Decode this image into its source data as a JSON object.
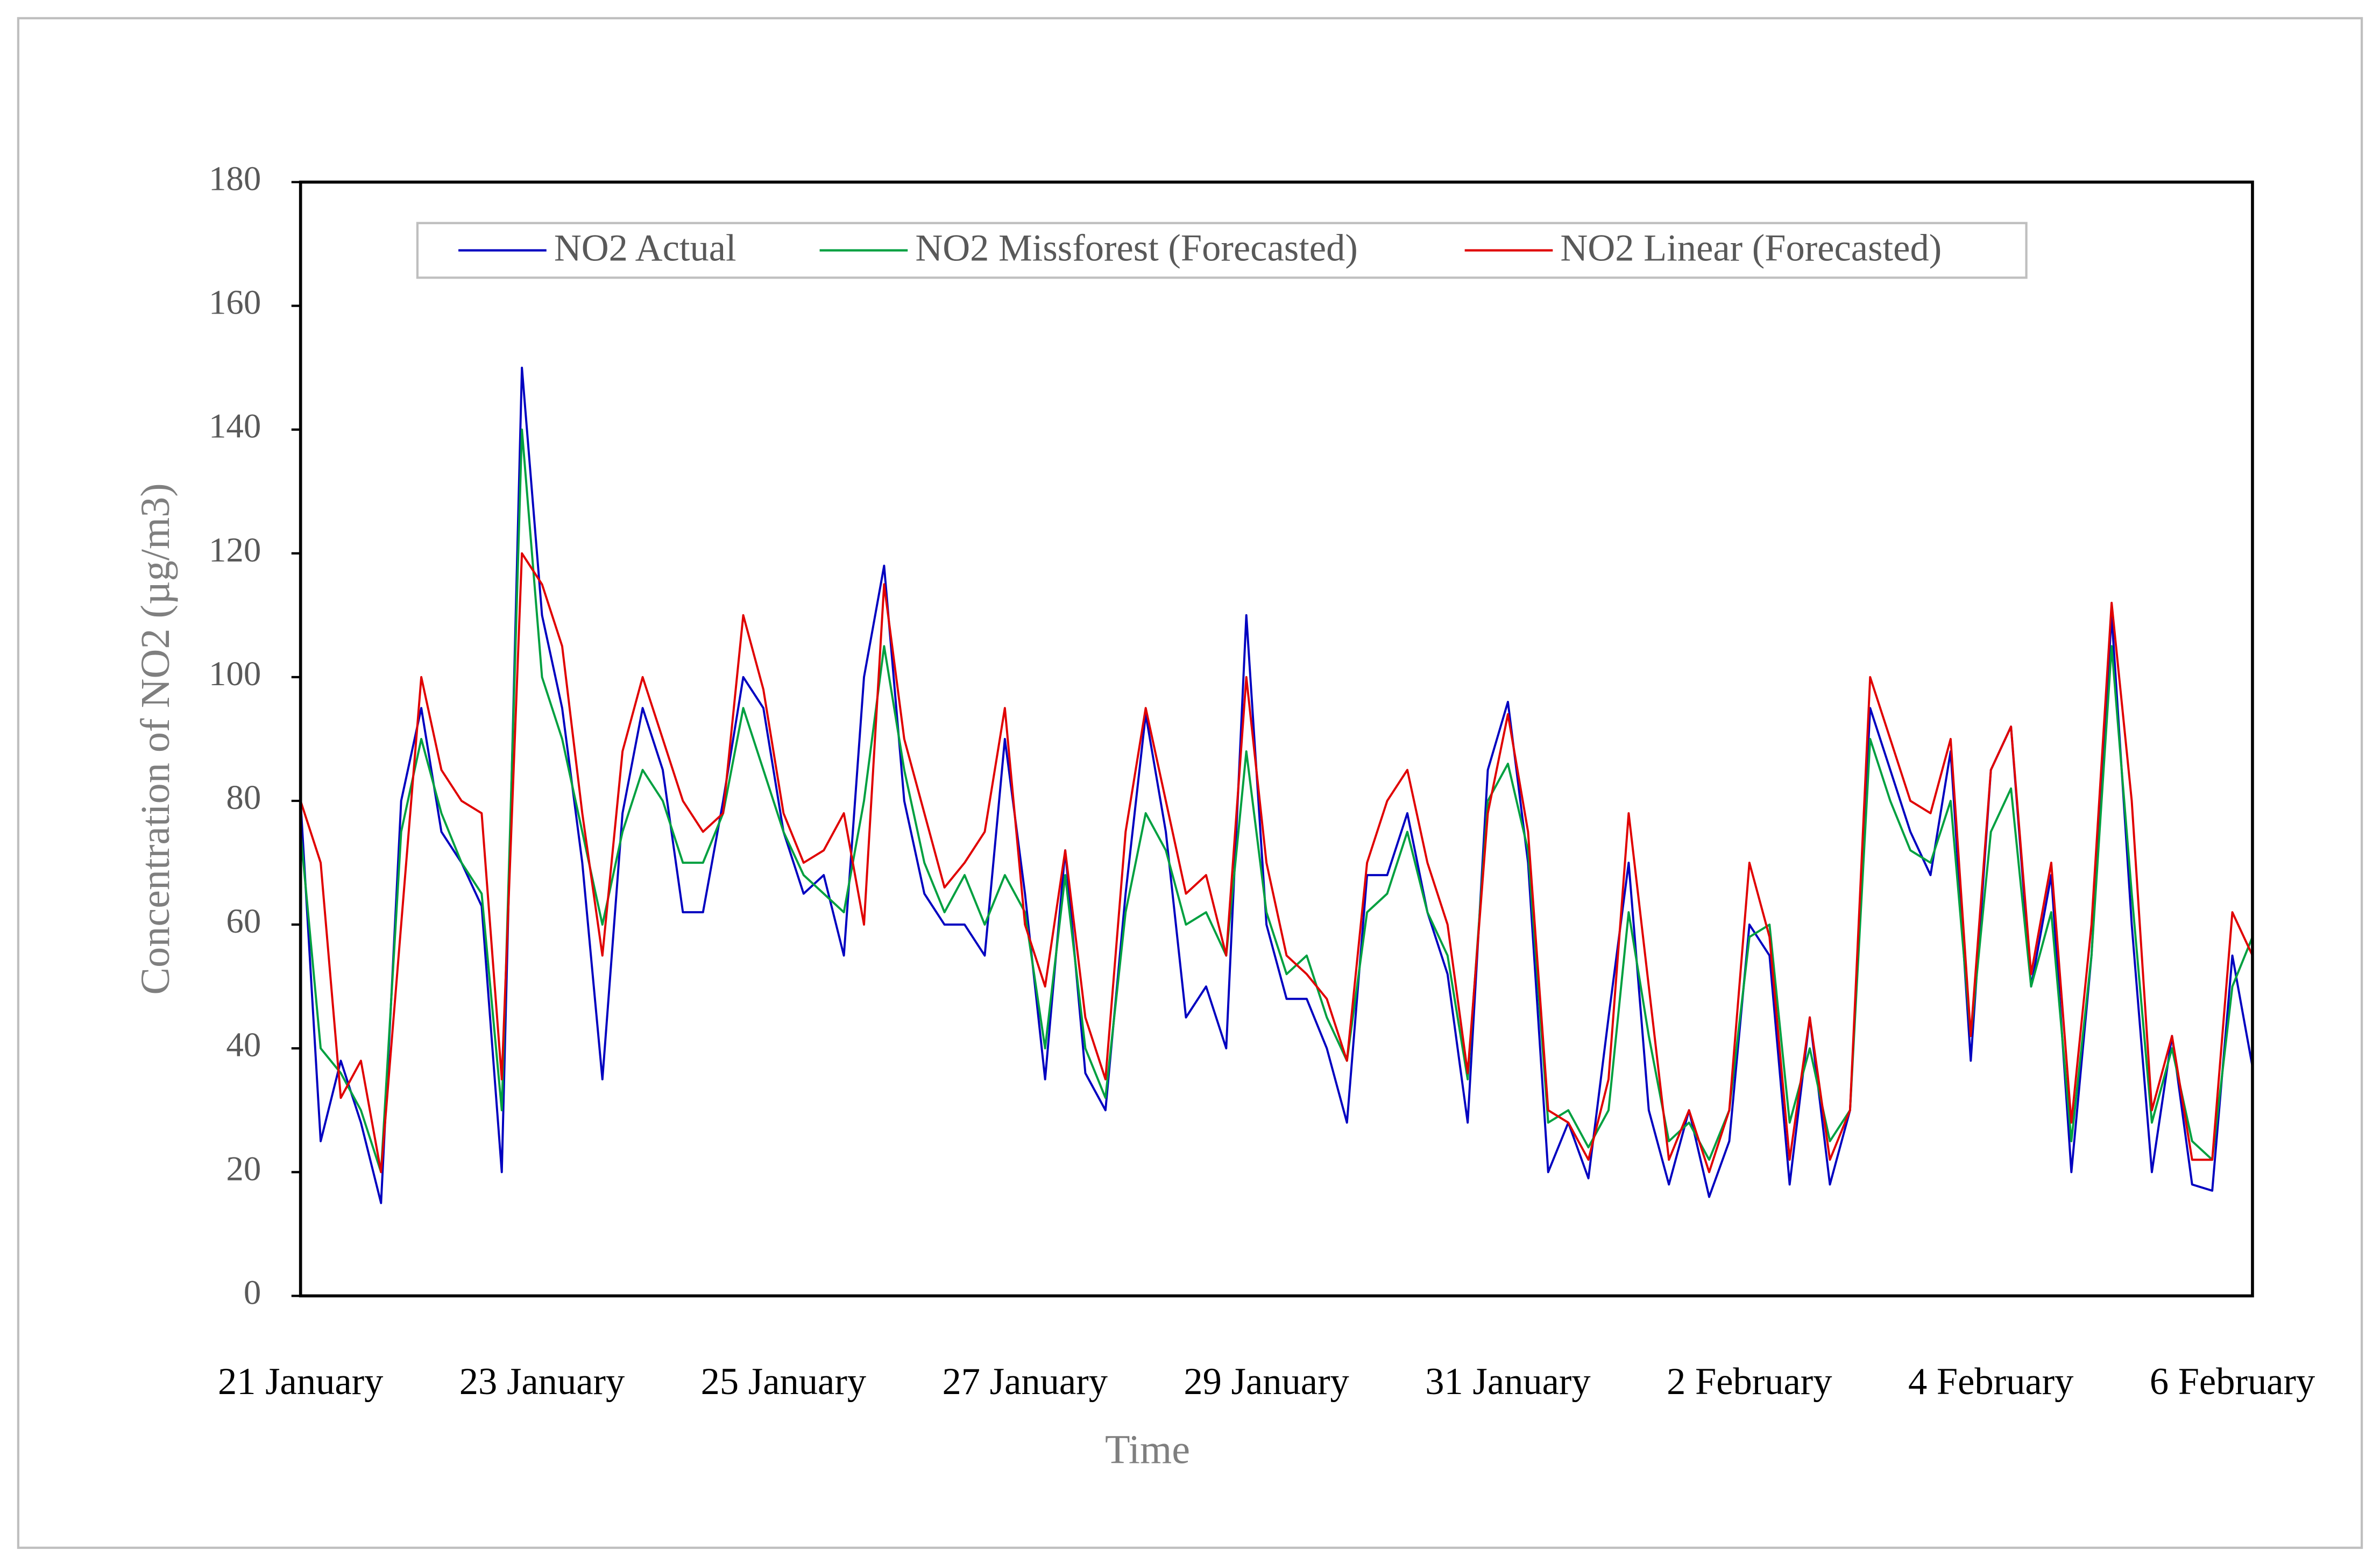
{
  "chart_data": {
    "type": "line",
    "x_label": "Time",
    "y_label": "Concentration of NO2 (µg/m3)",
    "categories": [
      "21 January",
      null,
      null,
      null,
      null,
      null,
      null,
      null,
      null,
      null,
      null,
      null,
      "23 January",
      null,
      null,
      null,
      null,
      null,
      null,
      null,
      null,
      null,
      null,
      null,
      "25 January",
      null,
      null,
      null,
      null,
      null,
      null,
      null,
      null,
      null,
      null,
      null,
      "27 January",
      null,
      null,
      null,
      null,
      null,
      null,
      null,
      null,
      null,
      null,
      null,
      "29 January",
      null,
      null,
      null,
      null,
      null,
      null,
      null,
      null,
      null,
      null,
      null,
      "31 January",
      null,
      null,
      null,
      null,
      null,
      null,
      null,
      null,
      null,
      null,
      null,
      "2 February",
      null,
      null,
      null,
      null,
      null,
      null,
      null,
      null,
      null,
      null,
      null,
      "4 February",
      null,
      null,
      null,
      null,
      null,
      null,
      null,
      null,
      null,
      null,
      null,
      "6 February",
      null
    ],
    "series": [
      {
        "name": "NO2 Actual",
        "color": "#0000c0",
        "values": [
          80,
          25,
          38,
          28,
          15,
          80,
          95,
          75,
          70,
          63,
          20,
          150,
          110,
          95,
          70,
          35,
          78,
          95,
          85,
          62,
          62,
          80,
          100,
          95,
          75,
          65,
          68,
          55,
          100,
          118,
          80,
          65,
          60,
          60,
          55,
          90,
          65,
          35,
          72,
          36,
          30,
          65,
          94,
          75,
          45,
          50,
          40,
          110,
          60,
          48,
          48,
          40,
          28,
          68,
          68,
          78,
          62,
          52,
          28,
          85,
          96,
          70,
          20,
          28,
          19,
          45,
          70,
          30,
          18,
          30,
          16,
          25,
          60,
          55,
          18,
          45,
          18,
          30,
          95,
          85,
          75,
          68,
          88,
          38,
          85,
          92,
          50,
          68,
          20,
          55,
          110,
          60,
          20,
          42,
          18,
          17,
          55,
          37
        ]
      },
      {
        "name": "NO2 Missforest (Forecasted)",
        "color": "#00a040",
        "values": [
          75,
          40,
          36,
          30,
          20,
          75,
          90,
          78,
          70,
          65,
          30,
          140,
          100,
          90,
          75,
          60,
          75,
          85,
          80,
          70,
          70,
          78,
          95,
          85,
          75,
          68,
          65,
          62,
          80,
          105,
          85,
          70,
          62,
          68,
          60,
          68,
          62,
          40,
          68,
          40,
          32,
          62,
          78,
          72,
          60,
          62,
          55,
          88,
          62,
          52,
          55,
          45,
          38,
          62,
          65,
          75,
          62,
          55,
          35,
          80,
          86,
          72,
          28,
          30,
          24,
          30,
          62,
          42,
          25,
          28,
          22,
          30,
          58,
          60,
          28,
          40,
          25,
          30,
          90,
          80,
          72,
          70,
          80,
          42,
          75,
          82,
          50,
          62,
          25,
          55,
          105,
          65,
          28,
          40,
          25,
          22,
          50,
          58
        ]
      },
      {
        "name": "NO2 Linear (Forecasted)",
        "color": "#e00000",
        "values": [
          80,
          70,
          32,
          38,
          20,
          60,
          100,
          85,
          80,
          78,
          35,
          120,
          115,
          105,
          78,
          55,
          88,
          100,
          90,
          80,
          75,
          78,
          110,
          98,
          78,
          70,
          72,
          78,
          60,
          115,
          90,
          78,
          66,
          70,
          75,
          95,
          60,
          50,
          72,
          45,
          35,
          75,
          95,
          80,
          65,
          68,
          55,
          100,
          70,
          55,
          52,
          48,
          38,
          70,
          80,
          85,
          70,
          60,
          36,
          78,
          94,
          75,
          30,
          28,
          22,
          35,
          78,
          50,
          22,
          30,
          20,
          30,
          70,
          58,
          22,
          45,
          22,
          30,
          100,
          90,
          80,
          78,
          90,
          42,
          85,
          92,
          52,
          70,
          28,
          60,
          112,
          80,
          30,
          42,
          22,
          22,
          62,
          55
        ]
      }
    ],
    "ylim": [
      0,
      180
    ],
    "yticks": [
      0,
      20,
      40,
      60,
      80,
      100,
      120,
      140,
      160,
      180
    ],
    "grid": false,
    "legend": "top"
  }
}
